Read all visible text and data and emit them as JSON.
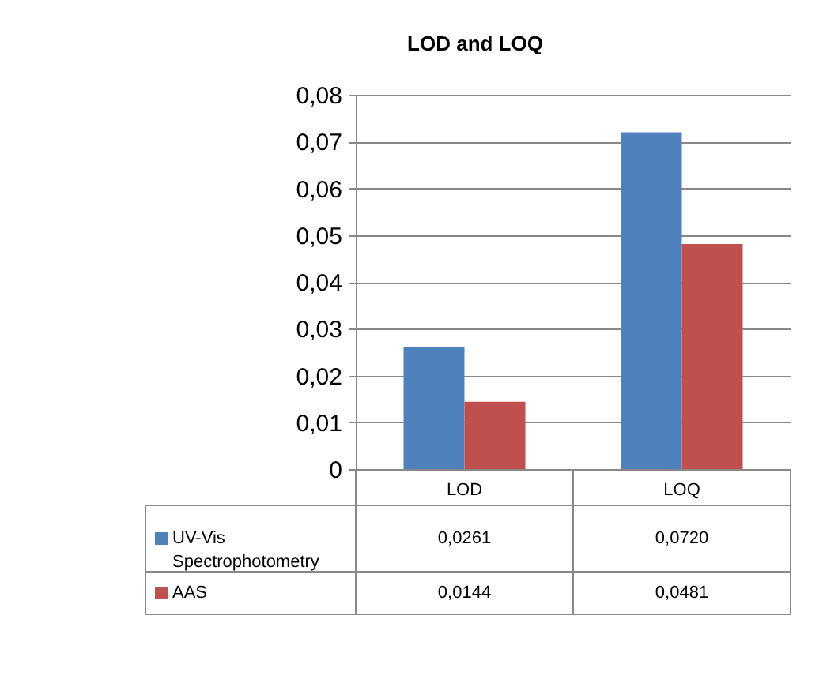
{
  "chart_data": {
    "type": "bar",
    "title": "LOD and LOQ",
    "categories": [
      "LOD",
      "LOQ"
    ],
    "series": [
      {
        "name": "UV-Vis Spectrophotometry",
        "color": "#4f81bd",
        "values": [
          0.0261,
          0.072
        ],
        "value_labels": [
          "0,0261",
          "0,0720"
        ]
      },
      {
        "name": "AAS",
        "color": "#c0504d",
        "values": [
          0.0144,
          0.0481
        ],
        "value_labels": [
          "0,0144",
          "0,0481"
        ]
      }
    ],
    "ylim": [
      0,
      0.08
    ],
    "yticks": [
      0,
      {
        "value": 0.01,
        "label": "0,01"
      },
      {
        "value": 0.02,
        "label": "0,02"
      },
      {
        "value": 0.03,
        "label": "0,03"
      },
      {
        "value": 0.04,
        "label": "0,04"
      },
      {
        "value": 0.05,
        "label": "0,05"
      },
      {
        "value": 0.06,
        "label": "0,06"
      },
      {
        "value": 0.07,
        "label": "0,07"
      },
      {
        "value": 0.08,
        "label": "0,08"
      }
    ],
    "grid": "y",
    "legend": "bottom"
  }
}
